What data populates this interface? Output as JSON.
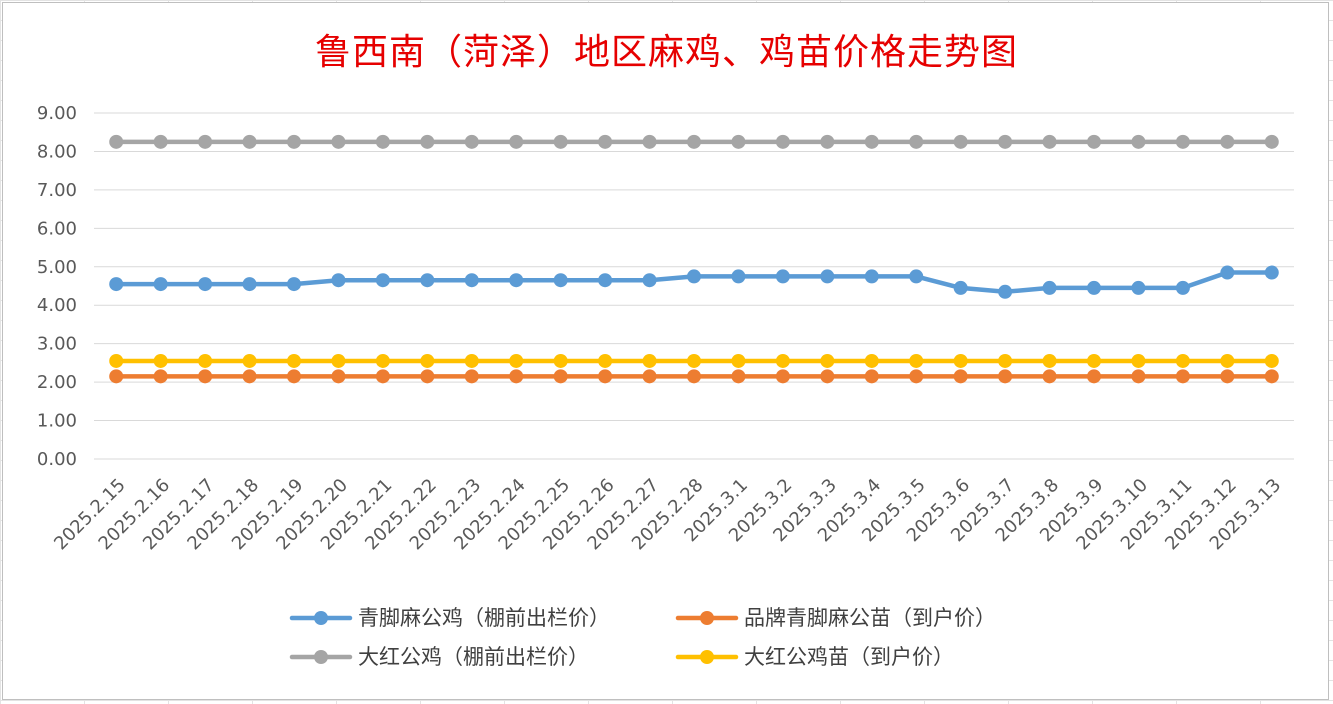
{
  "chart_data": {
    "type": "line",
    "title": "鲁西南（菏泽）地区麻鸡、鸡苗价格走势图",
    "xlabel": "",
    "ylabel": "",
    "ylim": [
      0,
      9
    ],
    "yticks": [
      "0.00",
      "1.00",
      "2.00",
      "3.00",
      "4.00",
      "5.00",
      "6.00",
      "7.00",
      "8.00",
      "9.00"
    ],
    "grid": true,
    "legend_position": "bottom",
    "categories": [
      "2025.2.15",
      "2025.2.16",
      "2025.2.17",
      "2025.2.18",
      "2025.2.19",
      "2025.2.20",
      "2025.2.21",
      "2025.2.22",
      "2025.2.23",
      "2025.2.24",
      "2025.2.25",
      "2025.2.26",
      "2025.2.27",
      "2025.2.28",
      "2025.3.1",
      "2025.3.2",
      "2025.3.3",
      "2025.3.4",
      "2025.3.5",
      "2025.3.6",
      "2025.3.7",
      "2025.3.8",
      "2025.3.9",
      "2025.3.10",
      "2025.3.11",
      "2025.3.12",
      "2025.3.13"
    ],
    "series": [
      {
        "name": "青脚麻公鸡（棚前出栏价）",
        "color": "#5b9bd5",
        "values": [
          4.55,
          4.55,
          4.55,
          4.55,
          4.55,
          4.65,
          4.65,
          4.65,
          4.65,
          4.65,
          4.65,
          4.65,
          4.65,
          4.75,
          4.75,
          4.75,
          4.75,
          4.75,
          4.75,
          4.45,
          4.35,
          4.45,
          4.45,
          4.45,
          4.45,
          4.85,
          4.85
        ]
      },
      {
        "name": "品牌青脚麻公苗（到户价）",
        "color": "#ed7d31",
        "values": [
          2.15,
          2.15,
          2.15,
          2.15,
          2.15,
          2.15,
          2.15,
          2.15,
          2.15,
          2.15,
          2.15,
          2.15,
          2.15,
          2.15,
          2.15,
          2.15,
          2.15,
          2.15,
          2.15,
          2.15,
          2.15,
          2.15,
          2.15,
          2.15,
          2.15,
          2.15,
          2.15
        ]
      },
      {
        "name": "大红公鸡（棚前出栏价）",
        "color": "#a5a5a5",
        "values": [
          8.25,
          8.25,
          8.25,
          8.25,
          8.25,
          8.25,
          8.25,
          8.25,
          8.25,
          8.25,
          8.25,
          8.25,
          8.25,
          8.25,
          8.25,
          8.25,
          8.25,
          8.25,
          8.25,
          8.25,
          8.25,
          8.25,
          8.25,
          8.25,
          8.25,
          8.25,
          8.25
        ]
      },
      {
        "name": "大红公鸡苗（到户价）",
        "color": "#ffc000",
        "values": [
          2.55,
          2.55,
          2.55,
          2.55,
          2.55,
          2.55,
          2.55,
          2.55,
          2.55,
          2.55,
          2.55,
          2.55,
          2.55,
          2.55,
          2.55,
          2.55,
          2.55,
          2.55,
          2.55,
          2.55,
          2.55,
          2.55,
          2.55,
          2.55,
          2.55,
          2.55,
          2.55
        ]
      }
    ]
  }
}
